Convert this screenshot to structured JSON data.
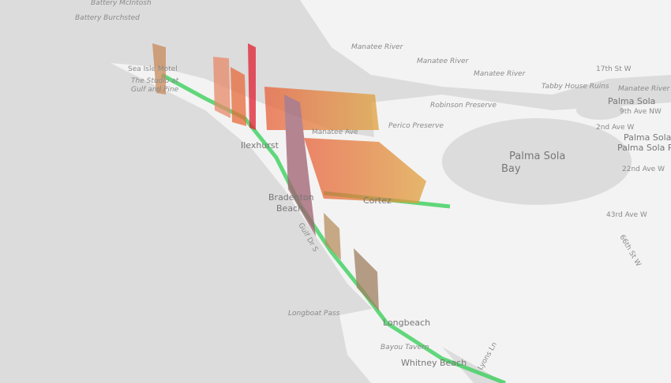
{
  "map": {
    "labels": [
      "Battery McIntosh",
      "Battery Burchsted",
      "Manatee River",
      "Manatee River",
      "Manatee River",
      "17th St W",
      "Tabby House Ruins",
      "Manatee River",
      "Robinson Preserve",
      "Palma Sola",
      "9th Ave NW",
      "2nd Ave W",
      "Palma Sola",
      "Palma Sola Park",
      "Palma Sola",
      "Bay",
      "22nd Ave W",
      "43rd Ave W",
      "Sea Isle Motel",
      "The Studio at",
      "Gulf and Pine",
      "Ilexhurst",
      "Bradenton",
      "Beach",
      "Cortez",
      "Longboat Pass",
      "Longbeach",
      "Bayou Tavern",
      "Whitney Beach",
      "Lyons Ln",
      "Manatee Ave",
      "Perico Preserve",
      "Gulf Dr S",
      "66th St W"
    ]
  }
}
